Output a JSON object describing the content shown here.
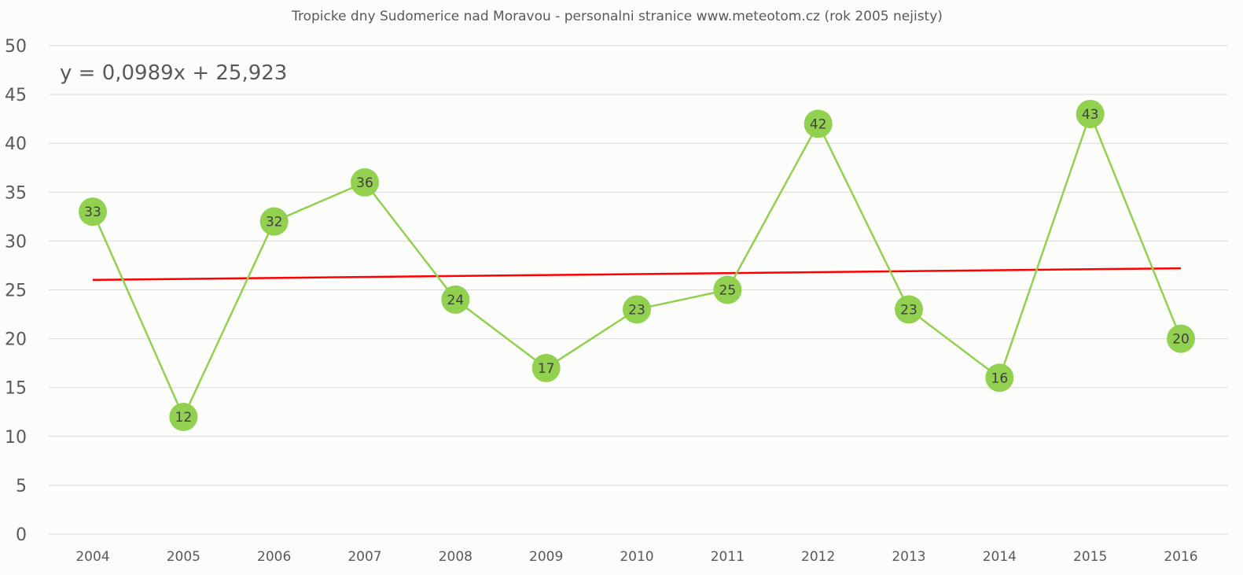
{
  "chart_data": {
    "type": "line",
    "title": "Tropicke dny Sudomerice nad Moravou - personalni stranice www.meteotom.cz (rok 2005 nejisty)",
    "xlabel": "",
    "ylabel": "",
    "categories": [
      "2004",
      "2005",
      "2006",
      "2007",
      "2008",
      "2009",
      "2010",
      "2011",
      "2012",
      "2013",
      "2014",
      "2015",
      "2016"
    ],
    "series": [
      {
        "name": "Tropicke dny",
        "values": [
          33,
          12,
          32,
          36,
          24,
          17,
          23,
          25,
          42,
          23,
          16,
          43,
          20
        ],
        "color": "#92d050",
        "data_labels": true
      }
    ],
    "trendline": {
      "type": "linear",
      "slope": 0.0989,
      "intercept": 25.923,
      "equation": "y = 0,0989x + 25,923",
      "color": "#ff0000"
    },
    "ylim": [
      0,
      50
    ],
    "yticks": [
      0,
      5,
      10,
      15,
      20,
      25,
      30,
      35,
      40,
      45,
      50
    ],
    "grid": true,
    "legend": "none"
  }
}
